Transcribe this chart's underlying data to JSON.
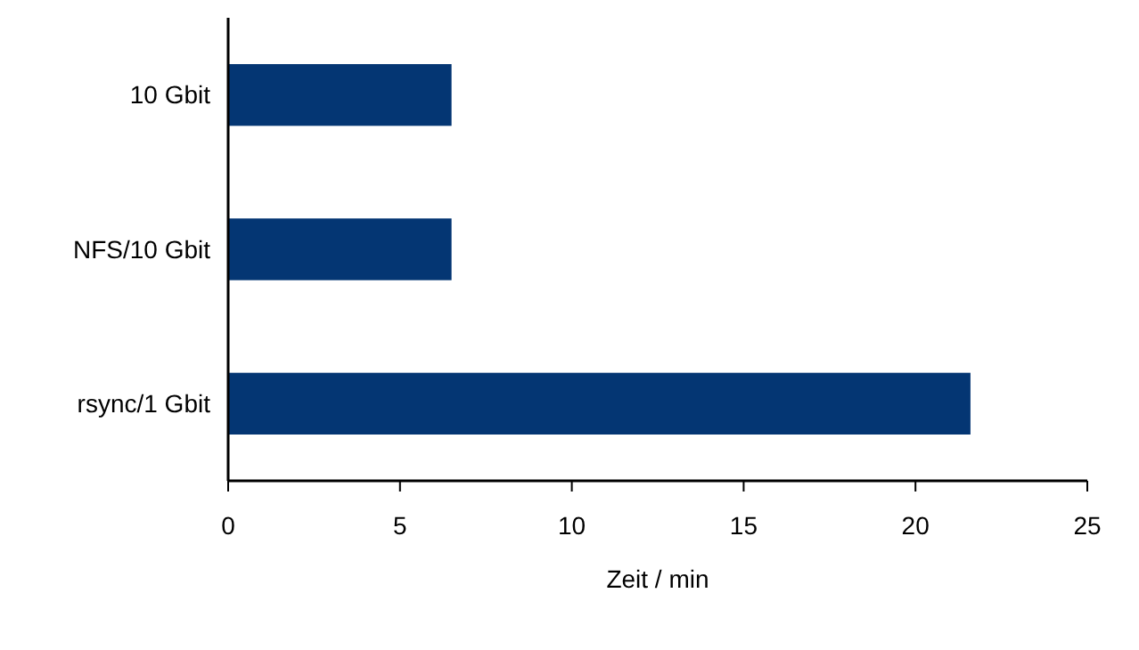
{
  "chart_data": {
    "type": "bar",
    "orientation": "horizontal",
    "xlabel": "Zeit / min",
    "categories": [
      "10 Gbit",
      "NFS/10 Gbit",
      "rsync/1 Gbit"
    ],
    "values": [
      6.5,
      6.5,
      21.6
    ],
    "color": "#043673",
    "xlim": [
      0,
      25
    ],
    "xticks": [
      0,
      5,
      10,
      15,
      20,
      25
    ]
  }
}
